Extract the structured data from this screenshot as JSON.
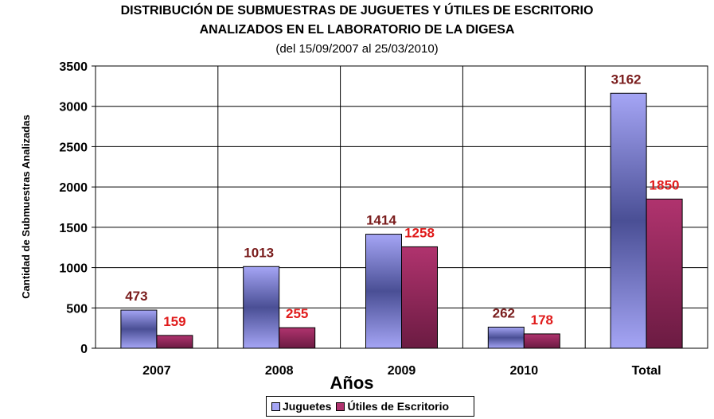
{
  "title_line1": "DISTRIBUCIÓN DE SUBMUESTRAS DE JUGUETES Y ÚTILES DE ESCRITORIO",
  "title_line2": "ANALIZADOS EN EL LABORATORIO DE LA DIGESA",
  "subtitle": "(del 15/09/2007 al 25/03/2010)",
  "colors": {
    "juguetes_light": "#a5a5f5",
    "juguetes_dark": "#4a4f95",
    "utiles_light": "#b0336e",
    "utiles_dark": "#6b1b42",
    "juguetes_label": "#7a1d1d",
    "utiles_label": "#e01b1b"
  },
  "chart_data": {
    "type": "bar",
    "title": "DISTRIBUCIÓN DE SUBMUESTRAS DE JUGUETES Y ÚTILES DE ESCRITORIO ANALIZADOS EN EL LABORATORIO DE LA DIGESA",
    "subtitle": "(del 15/09/2007 al 25/03/2010)",
    "xlabel": "Años",
    "ylabel": "Cantidad de Submuestras Analizadas",
    "categories": [
      "2007",
      "2008",
      "2009",
      "2010",
      "Total"
    ],
    "series": [
      {
        "name": "Juguetes",
        "values": [
          473,
          1013,
          1414,
          262,
          3162
        ]
      },
      {
        "name": "Útiles de Escritorio",
        "values": [
          159,
          255,
          1258,
          178,
          1850
        ]
      }
    ],
    "ylim": [
      0,
      3500
    ],
    "yticks": [
      0,
      500,
      1000,
      1500,
      2000,
      2500,
      3000,
      3500
    ],
    "grid": true,
    "legend_position": "bottom"
  }
}
